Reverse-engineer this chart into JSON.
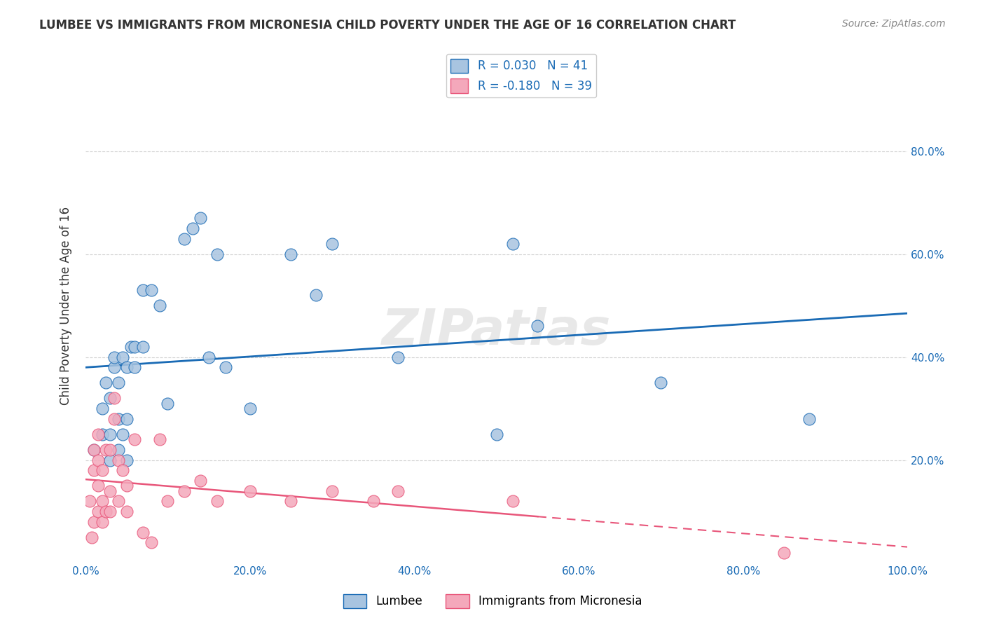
{
  "title": "LUMBEE VS IMMIGRANTS FROM MICRONESIA CHILD POVERTY UNDER THE AGE OF 16 CORRELATION CHART",
  "source": "Source: ZipAtlas.com",
  "ylabel": "Child Poverty Under the Age of 16",
  "xlim": [
    0,
    1.0
  ],
  "ylim": [
    0,
    1.0
  ],
  "xtick_labels": [
    "0.0%",
    "20.0%",
    "40.0%",
    "60.0%",
    "80.0%",
    "100.0%"
  ],
  "xtick_vals": [
    0.0,
    0.2,
    0.4,
    0.6,
    0.8,
    1.0
  ],
  "ytick_labels": [
    "20.0%",
    "40.0%",
    "60.0%",
    "80.0%"
  ],
  "ytick_vals": [
    0.2,
    0.4,
    0.6,
    0.8
  ],
  "lumbee_color": "#a8c4e0",
  "micronesia_color": "#f4a8bb",
  "lumbee_line_color": "#1a6bb5",
  "micronesia_line_color": "#e8567a",
  "legend_R1": "0.030",
  "legend_N1": "41",
  "legend_R2": "-0.180",
  "legend_N2": "39",
  "legend_label1": "Lumbee",
  "legend_label2": "Immigrants from Micronesia",
  "watermark": "ZIPatlas",
  "lumbee_x": [
    0.01,
    0.02,
    0.02,
    0.025,
    0.03,
    0.03,
    0.03,
    0.035,
    0.035,
    0.04,
    0.04,
    0.04,
    0.045,
    0.045,
    0.05,
    0.05,
    0.05,
    0.055,
    0.06,
    0.06,
    0.07,
    0.07,
    0.08,
    0.09,
    0.1,
    0.12,
    0.13,
    0.14,
    0.15,
    0.16,
    0.17,
    0.2,
    0.25,
    0.28,
    0.3,
    0.38,
    0.5,
    0.52,
    0.55,
    0.7,
    0.88
  ],
  "lumbee_y": [
    0.22,
    0.25,
    0.3,
    0.35,
    0.2,
    0.25,
    0.32,
    0.38,
    0.4,
    0.22,
    0.28,
    0.35,
    0.25,
    0.4,
    0.2,
    0.28,
    0.38,
    0.42,
    0.38,
    0.42,
    0.42,
    0.53,
    0.53,
    0.5,
    0.31,
    0.63,
    0.65,
    0.67,
    0.4,
    0.6,
    0.38,
    0.3,
    0.6,
    0.52,
    0.62,
    0.4,
    0.25,
    0.62,
    0.46,
    0.35,
    0.28
  ],
  "micronesia_x": [
    0.005,
    0.008,
    0.01,
    0.01,
    0.01,
    0.015,
    0.015,
    0.015,
    0.015,
    0.02,
    0.02,
    0.02,
    0.025,
    0.025,
    0.03,
    0.03,
    0.03,
    0.035,
    0.035,
    0.04,
    0.04,
    0.045,
    0.05,
    0.05,
    0.06,
    0.07,
    0.08,
    0.09,
    0.1,
    0.12,
    0.14,
    0.16,
    0.2,
    0.25,
    0.3,
    0.35,
    0.38,
    0.52,
    0.85
  ],
  "micronesia_y": [
    0.12,
    0.05,
    0.08,
    0.18,
    0.22,
    0.1,
    0.15,
    0.2,
    0.25,
    0.08,
    0.12,
    0.18,
    0.1,
    0.22,
    0.1,
    0.14,
    0.22,
    0.28,
    0.32,
    0.12,
    0.2,
    0.18,
    0.1,
    0.15,
    0.24,
    0.06,
    0.04,
    0.24,
    0.12,
    0.14,
    0.16,
    0.12,
    0.14,
    0.12,
    0.14,
    0.12,
    0.14,
    0.12,
    0.02
  ]
}
